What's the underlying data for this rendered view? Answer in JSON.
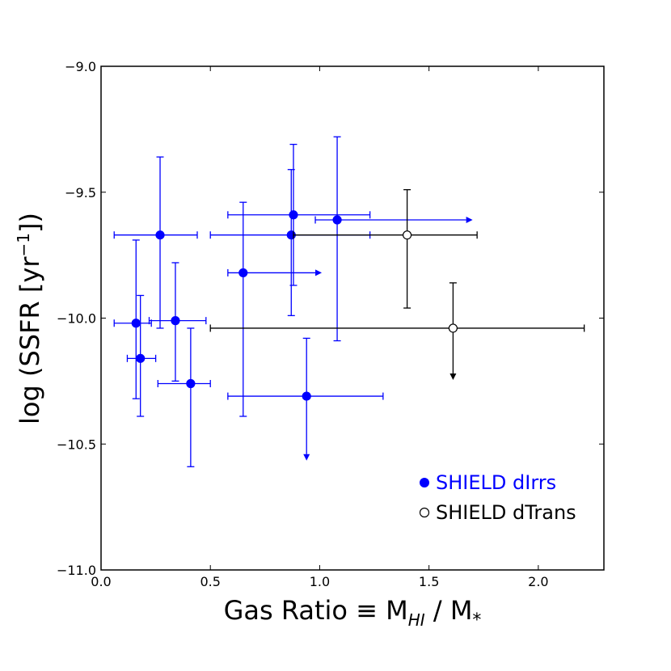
{
  "chart_data": {
    "type": "scatter",
    "xlabel": "Gas Ratio ≡ M",
    "xlabel_sub1": "HI",
    "xlabel_mid": " / M",
    "xlabel_sub2": "*",
    "ylabel": "log (SSFR [yr",
    "ylabel_sup": "−1",
    "ylabel_end": "])",
    "xlim": [
      0.0,
      2.3
    ],
    "ylim": [
      -11.0,
      -9.0
    ],
    "x_ticks": [
      0.0,
      0.5,
      1.0,
      1.5,
      2.0
    ],
    "x_tick_labels": [
      "0.0",
      "0.5",
      "1.0",
      "1.5",
      "2.0"
    ],
    "y_ticks": [
      -9.0,
      -9.5,
      -10.0,
      -10.5,
      -11.0
    ],
    "y_tick_labels": [
      "−9.0",
      "−9.5",
      "−10.0",
      "−10.5",
      "−11.0"
    ],
    "grid": false,
    "legend_position": "lower-right",
    "series": [
      {
        "name": "SHIELD dIrrs",
        "color": "#0000ff",
        "marker": "filled-circle",
        "points": [
          {
            "x": 0.16,
            "y": -10.02,
            "xerr": [
              0.1,
              0.07
            ],
            "yerr": [
              0.3,
              0.33
            ]
          },
          {
            "x": 0.18,
            "y": -10.16,
            "xerr": [
              0.06,
              0.07
            ],
            "yerr": [
              0.23,
              0.25
            ]
          },
          {
            "x": 0.27,
            "y": -9.67,
            "xerr": [
              0.21,
              0.17
            ],
            "yerr": [
              0.37,
              0.31
            ]
          },
          {
            "x": 0.34,
            "y": -10.01,
            "xerr": [
              0.12,
              0.14
            ],
            "yerr": [
              0.24,
              0.23
            ]
          },
          {
            "x": 0.41,
            "y": -10.26,
            "xerr": [
              0.15,
              0.09
            ],
            "yerr": [
              0.33,
              0.22
            ]
          },
          {
            "x": 0.65,
            "y": -9.82,
            "xerr": [
              0.07,
              0.33
            ],
            "yerr": [
              0.57,
              0.28
            ],
            "arrow": "right"
          },
          {
            "x": 0.87,
            "y": -9.67,
            "xerr": [
              0.37,
              0.36
            ],
            "yerr": [
              0.32,
              0.26
            ]
          },
          {
            "x": 0.88,
            "y": -9.59,
            "xerr": [
              0.3,
              0.35
            ],
            "yerr": [
              0.28,
              0.28
            ]
          },
          {
            "x": 0.94,
            "y": -10.31,
            "xerr": [
              0.36,
              0.35
            ],
            "yerr": [
              0.23,
              0.23
            ],
            "arrow": "down"
          },
          {
            "x": 1.08,
            "y": -9.61,
            "xerr": [
              0.1,
              0.59
            ],
            "yerr": [
              0.48,
              0.33
            ],
            "arrow": "right"
          }
        ]
      },
      {
        "name": "SHIELD dTrans",
        "color": "#000000",
        "marker": "open-circle",
        "points": [
          {
            "x": 1.4,
            "y": -9.67,
            "xerr": [
              0.52,
              0.32
            ],
            "yerr": [
              0.29,
              0.18
            ]
          },
          {
            "x": 1.61,
            "y": -10.04,
            "xerr": [
              1.11,
              0.6
            ],
            "yerr": [
              0.18,
              0.18
            ],
            "arrow": "down"
          }
        ]
      }
    ]
  }
}
